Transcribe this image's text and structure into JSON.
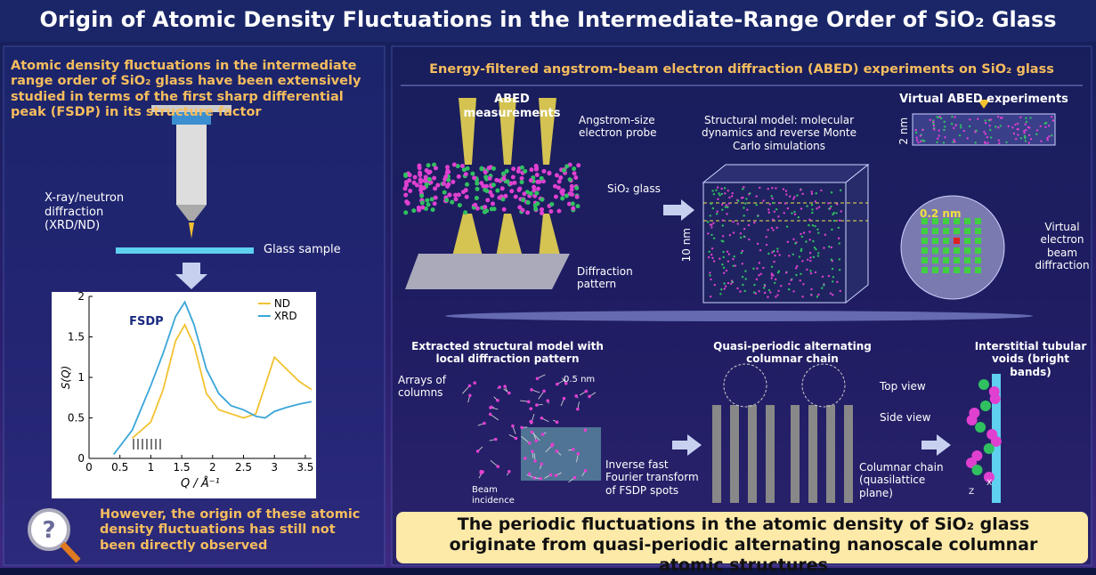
{
  "header": {
    "title": "Origin of Atomic Density Fluctuations in the Intermediate-Range Order of SiO₂ Glass"
  },
  "left": {
    "intro": "Atomic density fluctuations in the intermediate range order of SiO₂ glass have been extensively studied in terms of the first sharp differential peak (FSDP) in its structure factor",
    "source_label": "X-ray/neutron diffraction (XRD/ND)",
    "sample_label": "Glass sample",
    "chart": {
      "type": "line",
      "annotation": "FSDP",
      "x_label": "Q / Å⁻¹",
      "y_label": "S(Q)",
      "x": [
        0.4,
        0.7,
        1.0,
        1.2,
        1.4,
        1.55,
        1.7,
        1.9,
        2.1,
        2.3,
        2.5,
        2.7,
        2.85,
        3.0,
        3.2,
        3.4,
        3.6
      ],
      "series": [
        {
          "name": "ND",
          "color": "#f2c230",
          "values": [
            null,
            0.25,
            0.45,
            0.85,
            1.45,
            1.65,
            1.4,
            0.8,
            0.6,
            0.55,
            0.5,
            0.55,
            0.9,
            1.25,
            1.1,
            0.95,
            0.85
          ]
        },
        {
          "name": "XRD",
          "color": "#3aa6d8",
          "values": [
            0.05,
            0.35,
            0.9,
            1.3,
            1.75,
            1.93,
            1.65,
            1.1,
            0.8,
            0.65,
            0.6,
            0.52,
            0.5,
            0.58,
            0.63,
            0.67,
            0.7
          ]
        }
      ],
      "xlim": [
        0,
        3.6
      ],
      "ylim": [
        0,
        2
      ],
      "xticks": [
        0,
        0.5,
        1,
        1.5,
        2,
        2.5,
        3,
        3.5
      ],
      "yticks": [
        0,
        0.5,
        1,
        1.5,
        2
      ],
      "legend": "upper right"
    },
    "conclusion": "However, the origin of these atomic density fluctuations has still not been directly observed"
  },
  "right": {
    "heading": "Energy-filtered angstrom-beam electron diffraction (ABED) experiments on SiO₂ glass",
    "abed": {
      "title": "ABED measurements",
      "probe": "Angstrom-size electron probe",
      "glass": "SiO₂ glass",
      "pattern": "Diffraction pattern"
    },
    "model": {
      "caption": "Structural model: molecular dynamics and reverse Monte Carlo simulations",
      "size": "10 nm"
    },
    "virtual": {
      "title": "Virtual ABED experiments",
      "thickness": "2 nm",
      "spacing": "0.2 nm",
      "beam": "Virtual electron beam diffraction"
    },
    "extracted": {
      "title": "Extracted structural model with local diffraction pattern",
      "columns": "Arrays of columns",
      "scale": "0.5 nm",
      "beam": "Beam incidence",
      "ifft": "Inverse fast Fourier transform of FSDP spots"
    },
    "chain": {
      "title": "Quasi-periodic alternating columnar chain",
      "top": "Top view",
      "side": "Side view",
      "chain": "Columnar chain (quasilattice plane)"
    },
    "voids": {
      "title": "Interstitial tubular voids (bright bands)",
      "axis_x": "X",
      "axis_z": "Z"
    },
    "conclusion": "The periodic fluctuations in the atomic density of SiO₂ glass originate from quasi-periodic alternating nanoscale columnar atomic structures"
  }
}
